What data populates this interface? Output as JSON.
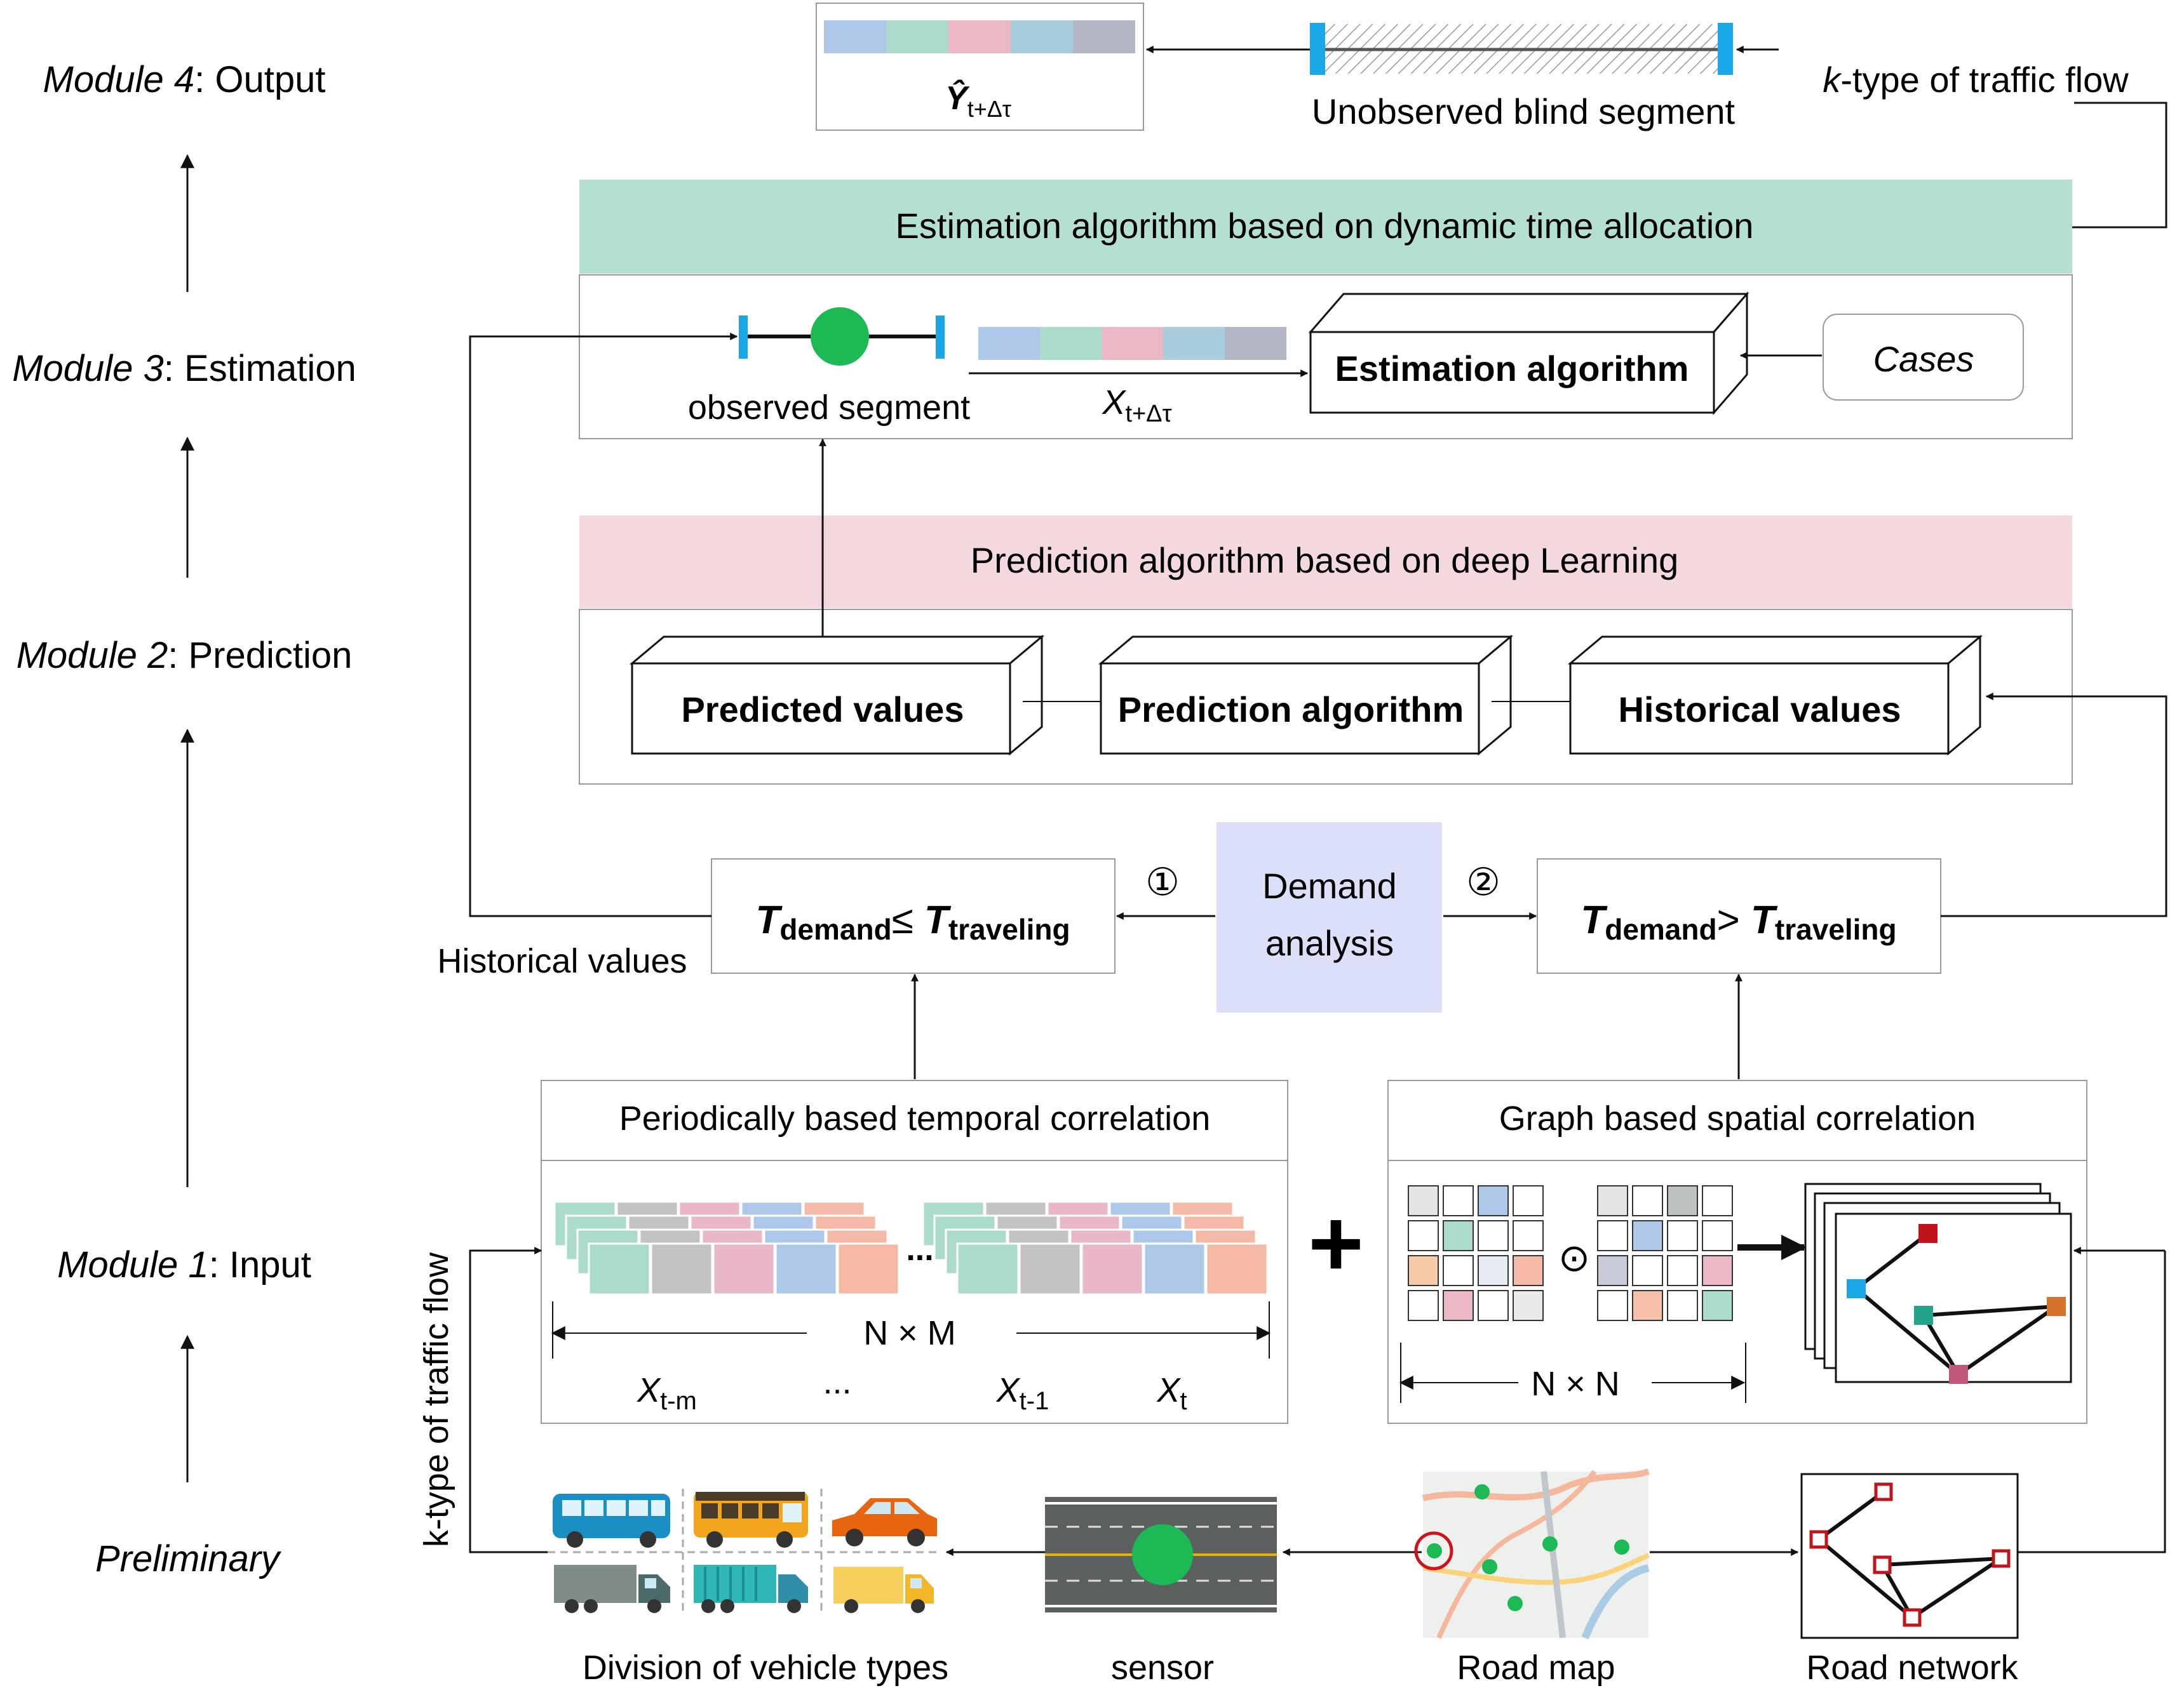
{
  "modules": {
    "m4": {
      "prefix": "Module 4",
      "name": ": Output"
    },
    "m3": {
      "prefix": "Module 3",
      "name": ": Estimation"
    },
    "m2": {
      "prefix": "Module 2",
      "name": ": Prediction"
    },
    "m1": {
      "prefix": "Module 1",
      "name": ": Input"
    },
    "pre": "Preliminary"
  },
  "output": {
    "y_symbol": "Ŷ",
    "y_subscript": "t+Δτ",
    "blind_segment": "Unobserved blind segment",
    "k_type": "-type of traffic flow",
    "k_letter": "k"
  },
  "estimation": {
    "header": "Estimation algorithm based on dynamic time allocation",
    "observed": "observed  segment",
    "x_symbol": "X",
    "x_subscript": "t+Δτ",
    "algorithm": "Estimation algorithm",
    "cases": "Cases"
  },
  "prediction": {
    "header": "Prediction algorithm based on deep Learning",
    "predicted": "Predicted values",
    "algorithm": "Prediction algorithm",
    "historical": "Historical values"
  },
  "demand": {
    "label_line1": "Demand",
    "label_line2": "analysis",
    "circle1": "①",
    "circle2": "②",
    "left": {
      "t1": "T",
      "s1": "demand",
      "op": "≤ ",
      "t2": "T",
      "s2": "traveling"
    },
    "right": {
      "t1": "T",
      "s1": "demand",
      "op": "> ",
      "t2": "T",
      "s2": "traveling"
    },
    "historical_label": "Historical values"
  },
  "temporal": {
    "header": "Periodically based temporal correlation",
    "dims": "N × M",
    "ellipsis": "...",
    "labels": [
      {
        "sym": "X",
        "sub": "t-m"
      },
      {
        "sym": "...",
        "sub": ""
      },
      {
        "sym": "X",
        "sub": "t-1"
      },
      {
        "sym": "X",
        "sub": "t"
      }
    ]
  },
  "spatial": {
    "header": "Graph based spatial correlation",
    "dims": "N × N",
    "odot": "⊙",
    "plus": "+"
  },
  "preliminary": {
    "vertical_label": "k-type of traffic flow",
    "vehicles": "Division of vehicle types",
    "sensor": "sensor",
    "road_map": "Road map",
    "road_network": "Road network"
  },
  "colors": {
    "estimation_header": "#b4e0d2",
    "prediction_header": "#f3d8de",
    "demand_box": "#dcdff8",
    "cyan_marker": "#1aa7e8",
    "green_node": "#1db954",
    "strip": [
      "#aec8ea",
      "#abdccb",
      "#ecb8c6",
      "#a8ccdc",
      "#b3b6c5"
    ],
    "grid_temporal": [
      "#abdccb",
      "#c2c2c2",
      "#e9b7c7",
      "#aec8ea",
      "#f4b9a7"
    ],
    "graph_nodes": [
      "#c0131b",
      "#1aa7e8",
      "#22a38a",
      "#d4732c",
      "#c0587a"
    ],
    "road_net_node": "#c0131b"
  },
  "icons": [
    "bus-icon",
    "school-bus-icon",
    "car-icon",
    "truck-icon",
    "container-truck-icon",
    "van-icon",
    "sensor-road-icon",
    "road-map-icon",
    "road-network-icon"
  ]
}
